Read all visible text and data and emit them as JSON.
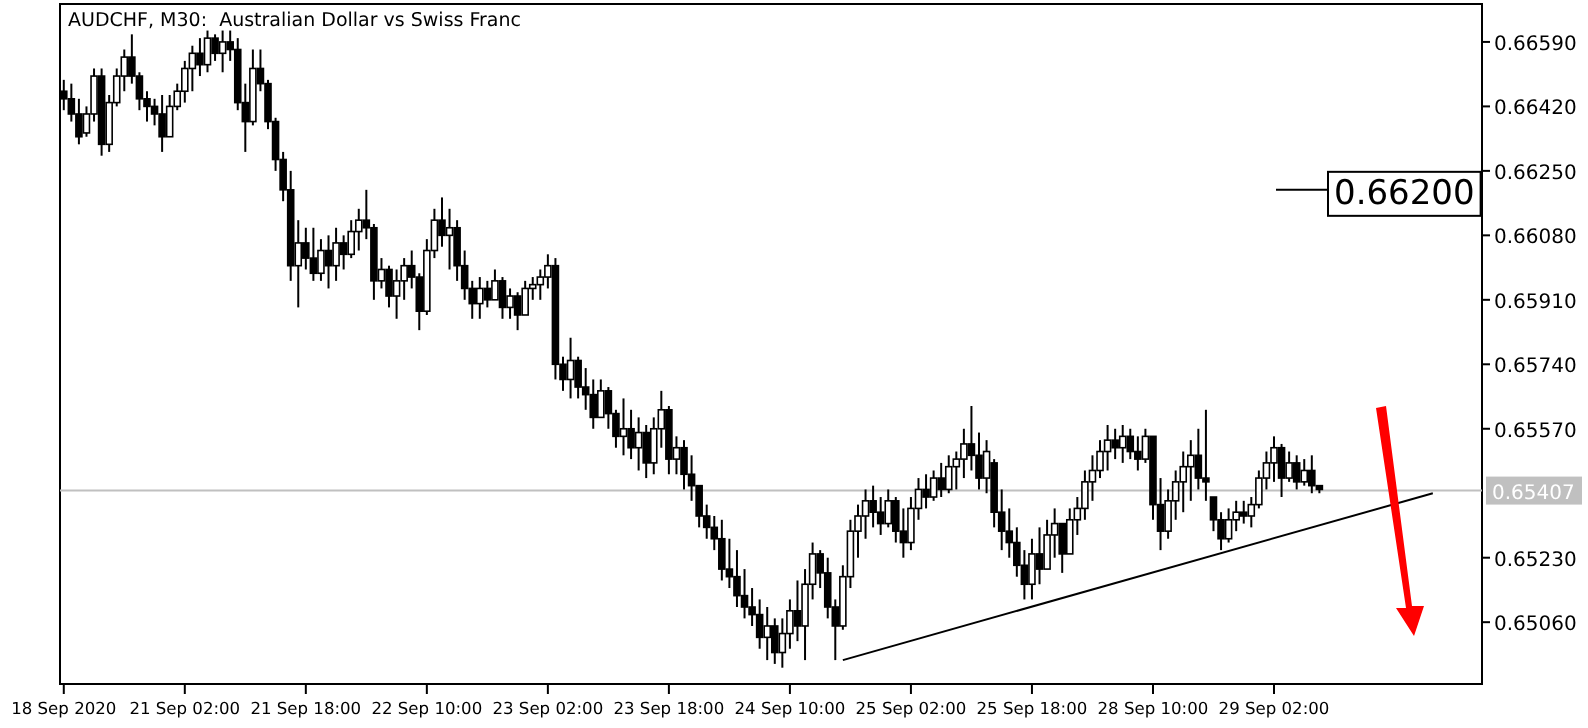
{
  "chart_data": {
    "type": "candlestick",
    "title": "AUDCHF, M30:  Australian Dollar vs Swiss Franc",
    "categories": [
      "18 Sep 2020",
      null,
      null,
      null,
      null,
      null,
      null,
      null,
      null,
      null,
      null,
      null,
      null,
      null,
      null,
      null,
      "21 Sep 02:00",
      null,
      null,
      null,
      null,
      null,
      null,
      null,
      null,
      null,
      null,
      null,
      null,
      null,
      null,
      null,
      "21 Sep 18:00",
      null,
      null,
      null,
      null,
      null,
      null,
      null,
      null,
      null,
      null,
      null,
      null,
      null,
      null,
      null,
      "22 Sep 10:00",
      null,
      null,
      null,
      null,
      null,
      null,
      null,
      null,
      null,
      null,
      null,
      null,
      null,
      null,
      null,
      "23 Sep 02:00",
      null,
      null,
      null,
      null,
      null,
      null,
      null,
      null,
      null,
      null,
      null,
      null,
      null,
      null,
      null,
      "23 Sep 18:00",
      null,
      null,
      null,
      null,
      null,
      null,
      null,
      null,
      null,
      null,
      null,
      null,
      null,
      null,
      null,
      "24 Sep 10:00",
      null,
      null,
      null,
      null,
      null,
      null,
      null,
      null,
      null,
      null,
      null,
      null,
      null,
      null,
      null,
      "25 Sep 02:00",
      null,
      null,
      null,
      null,
      null,
      null,
      null,
      null,
      null,
      null,
      null,
      null,
      null,
      null,
      null,
      "25 Sep 18:00",
      null,
      null,
      null,
      null,
      null,
      null,
      null,
      null,
      null,
      null,
      null,
      null,
      null,
      null,
      null,
      "28 Sep 10:00",
      null,
      null,
      null,
      null,
      null,
      null,
      null,
      null,
      null,
      null,
      null,
      null,
      null,
      null,
      null,
      "29 Sep 02:00",
      null,
      null,
      null,
      null,
      null,
      null,
      null,
      null,
      null,
      null,
      null,
      null,
      null,
      null,
      null,
      null,
      null,
      null,
      null,
      null,
      null,
      null,
      null,
      null,
      null,
      null,
      null
    ],
    "ohlc": [
      [
        0.6646,
        0.6649,
        0.6641,
        0.6644
      ],
      [
        0.6644,
        0.6648,
        0.6638,
        0.664
      ],
      [
        0.664,
        0.6644,
        0.6632,
        0.6634
      ],
      [
        0.6635,
        0.6642,
        0.6634,
        0.664
      ],
      [
        0.664,
        0.6652,
        0.6638,
        0.665
      ],
      [
        0.665,
        0.6652,
        0.6629,
        0.6632
      ],
      [
        0.6632,
        0.6645,
        0.663,
        0.6643
      ],
      [
        0.6643,
        0.6652,
        0.6642,
        0.665
      ],
      [
        0.665,
        0.6657,
        0.6646,
        0.6655
      ],
      [
        0.6655,
        0.6661,
        0.6648,
        0.665
      ],
      [
        0.665,
        0.6651,
        0.6641,
        0.6644
      ],
      [
        0.6644,
        0.6646,
        0.6638,
        0.6642
      ],
      [
        0.6642,
        0.6644,
        0.6637,
        0.664
      ],
      [
        0.664,
        0.6645,
        0.663,
        0.6634
      ],
      [
        0.6634,
        0.6645,
        0.6634,
        0.6642
      ],
      [
        0.6642,
        0.6648,
        0.6641,
        0.6646
      ],
      [
        0.6646,
        0.6654,
        0.6643,
        0.6652
      ],
      [
        0.6652,
        0.6658,
        0.6646,
        0.6656
      ],
      [
        0.6656,
        0.666,
        0.665,
        0.6653
      ],
      [
        0.6653,
        0.6662,
        0.6651,
        0.666
      ],
      [
        0.666,
        0.6661,
        0.6654,
        0.6656
      ],
      [
        0.6656,
        0.6662,
        0.6651,
        0.6659
      ],
      [
        0.6659,
        0.6662,
        0.6654,
        0.6657
      ],
      [
        0.6657,
        0.666,
        0.6641,
        0.6643
      ],
      [
        0.6643,
        0.6648,
        0.663,
        0.6638
      ],
      [
        0.6638,
        0.6657,
        0.6637,
        0.6652
      ],
      [
        0.6652,
        0.6657,
        0.6646,
        0.6648
      ],
      [
        0.6648,
        0.6649,
        0.6636,
        0.6638
      ],
      [
        0.6638,
        0.6639,
        0.6625,
        0.6628
      ],
      [
        0.6628,
        0.663,
        0.6617,
        0.662
      ],
      [
        0.662,
        0.6625,
        0.6596,
        0.66
      ],
      [
        0.66,
        0.6612,
        0.6589,
        0.6606
      ],
      [
        0.6606,
        0.661,
        0.6599,
        0.6602
      ],
      [
        0.6602,
        0.661,
        0.6596,
        0.6598
      ],
      [
        0.6598,
        0.6607,
        0.6596,
        0.6604
      ],
      [
        0.6604,
        0.6608,
        0.6594,
        0.66
      ],
      [
        0.66,
        0.661,
        0.6596,
        0.6606
      ],
      [
        0.6606,
        0.6608,
        0.6599,
        0.6603
      ],
      [
        0.6603,
        0.6612,
        0.6602,
        0.6609
      ],
      [
        0.6609,
        0.6615,
        0.6604,
        0.6612
      ],
      [
        0.6612,
        0.662,
        0.6607,
        0.661
      ],
      [
        0.661,
        0.6611,
        0.6591,
        0.6596
      ],
      [
        0.6596,
        0.6602,
        0.6594,
        0.6599
      ],
      [
        0.6599,
        0.66,
        0.6589,
        0.6592
      ],
      [
        0.6592,
        0.6599,
        0.6586,
        0.6596
      ],
      [
        0.6596,
        0.6602,
        0.6591,
        0.66
      ],
      [
        0.66,
        0.6604,
        0.6594,
        0.6597
      ],
      [
        0.6597,
        0.6598,
        0.6583,
        0.6588
      ],
      [
        0.6588,
        0.6607,
        0.6587,
        0.6604
      ],
      [
        0.6604,
        0.6615,
        0.6602,
        0.6612
      ],
      [
        0.6612,
        0.6618,
        0.6605,
        0.6608
      ],
      [
        0.6608,
        0.6615,
        0.6599,
        0.661
      ],
      [
        0.661,
        0.6612,
        0.6596,
        0.66
      ],
      [
        0.66,
        0.6604,
        0.6591,
        0.6594
      ],
      [
        0.6594,
        0.6596,
        0.6586,
        0.659
      ],
      [
        0.659,
        0.6597,
        0.6586,
        0.6594
      ],
      [
        0.6594,
        0.6596,
        0.6589,
        0.6591
      ],
      [
        0.6591,
        0.6599,
        0.6591,
        0.6596
      ],
      [
        0.6596,
        0.6597,
        0.6586,
        0.6589
      ],
      [
        0.6589,
        0.6594,
        0.6586,
        0.6592
      ],
      [
        0.6592,
        0.6593,
        0.6583,
        0.6587
      ],
      [
        0.6587,
        0.6596,
        0.6587,
        0.6594
      ],
      [
        0.6594,
        0.6597,
        0.6591,
        0.6595
      ],
      [
        0.6595,
        0.6599,
        0.6591,
        0.6597
      ],
      [
        0.6597,
        0.6603,
        0.6594,
        0.66
      ],
      [
        0.66,
        0.6602,
        0.657,
        0.6574
      ],
      [
        0.6574,
        0.6576,
        0.6567,
        0.657
      ],
      [
        0.657,
        0.6581,
        0.6565,
        0.6575
      ],
      [
        0.6575,
        0.6576,
        0.6565,
        0.6568
      ],
      [
        0.6568,
        0.6573,
        0.6562,
        0.6566
      ],
      [
        0.6566,
        0.657,
        0.6557,
        0.656
      ],
      [
        0.656,
        0.657,
        0.656,
        0.6567
      ],
      [
        0.6567,
        0.6568,
        0.6557,
        0.6561
      ],
      [
        0.6561,
        0.6562,
        0.6552,
        0.6555
      ],
      [
        0.6555,
        0.6565,
        0.655,
        0.6557
      ],
      [
        0.6557,
        0.6562,
        0.6549,
        0.6552
      ],
      [
        0.6552,
        0.656,
        0.6546,
        0.6556
      ],
      [
        0.6556,
        0.6558,
        0.6544,
        0.6548
      ],
      [
        0.6548,
        0.656,
        0.6545,
        0.6557
      ],
      [
        0.6557,
        0.6567,
        0.6552,
        0.6562
      ],
      [
        0.6562,
        0.6563,
        0.6545,
        0.6549
      ],
      [
        0.6549,
        0.6555,
        0.6545,
        0.6552
      ],
      [
        0.6552,
        0.6554,
        0.6541,
        0.6545
      ],
      [
        0.6545,
        0.655,
        0.6538,
        0.6542
      ],
      [
        0.6542,
        0.6542,
        0.6531,
        0.6534
      ],
      [
        0.6534,
        0.6537,
        0.6528,
        0.6531
      ],
      [
        0.6531,
        0.6534,
        0.6525,
        0.6528
      ],
      [
        0.6528,
        0.6533,
        0.6517,
        0.652
      ],
      [
        0.652,
        0.6528,
        0.6515,
        0.6518
      ],
      [
        0.6518,
        0.6525,
        0.651,
        0.6513
      ],
      [
        0.6513,
        0.652,
        0.6507,
        0.651
      ],
      [
        0.651,
        0.6515,
        0.6505,
        0.6508
      ],
      [
        0.6508,
        0.6512,
        0.6499,
        0.6502
      ],
      [
        0.6502,
        0.651,
        0.6496,
        0.6505
      ],
      [
        0.6505,
        0.6507,
        0.6495,
        0.6498
      ],
      [
        0.6498,
        0.6507,
        0.6494,
        0.6503
      ],
      [
        0.6503,
        0.6512,
        0.6499,
        0.6509
      ],
      [
        0.6509,
        0.6517,
        0.6501,
        0.6505
      ],
      [
        0.6505,
        0.652,
        0.6496,
        0.6516
      ],
      [
        0.6516,
        0.6527,
        0.6512,
        0.6524
      ],
      [
        0.6524,
        0.6525,
        0.6515,
        0.6519
      ],
      [
        0.6519,
        0.6523,
        0.6507,
        0.651
      ],
      [
        0.651,
        0.6512,
        0.6496,
        0.6505
      ],
      [
        0.6505,
        0.6521,
        0.6504,
        0.6518
      ],
      [
        0.6518,
        0.6533,
        0.6515,
        0.653
      ],
      [
        0.653,
        0.6537,
        0.6523,
        0.6534
      ],
      [
        0.6534,
        0.6541,
        0.6528,
        0.6538
      ],
      [
        0.6538,
        0.6542,
        0.6531,
        0.6535
      ],
      [
        0.6535,
        0.6539,
        0.6529,
        0.6532
      ],
      [
        0.6532,
        0.6541,
        0.6531,
        0.6538
      ],
      [
        0.6538,
        0.6539,
        0.6527,
        0.653
      ],
      [
        0.653,
        0.6536,
        0.6523,
        0.6527
      ],
      [
        0.6527,
        0.6539,
        0.6525,
        0.6536
      ],
      [
        0.6536,
        0.6544,
        0.6533,
        0.6541
      ],
      [
        0.6541,
        0.6545,
        0.6536,
        0.6539
      ],
      [
        0.6539,
        0.6546,
        0.6538,
        0.6544
      ],
      [
        0.6544,
        0.6548,
        0.6539,
        0.6541
      ],
      [
        0.6541,
        0.655,
        0.654,
        0.6547
      ],
      [
        0.6547,
        0.6551,
        0.6541,
        0.6549
      ],
      [
        0.6549,
        0.6557,
        0.6544,
        0.6553
      ],
      [
        0.6553,
        0.6563,
        0.6546,
        0.655
      ],
      [
        0.655,
        0.6556,
        0.6541,
        0.6544
      ],
      [
        0.6544,
        0.6554,
        0.654,
        0.6551
      ],
      [
        0.6548,
        0.6549,
        0.6531,
        0.6535
      ],
      [
        0.6535,
        0.6541,
        0.6525,
        0.653
      ],
      [
        0.653,
        0.6536,
        0.6523,
        0.6527
      ],
      [
        0.6527,
        0.6531,
        0.6518,
        0.6521
      ],
      [
        0.6521,
        0.6525,
        0.6512,
        0.6516
      ],
      [
        0.6516,
        0.6528,
        0.6512,
        0.6524
      ],
      [
        0.6524,
        0.6531,
        0.6516,
        0.652
      ],
      [
        0.652,
        0.6533,
        0.652,
        0.6529
      ],
      [
        0.6529,
        0.6536,
        0.6523,
        0.6532
      ],
      [
        0.6532,
        0.6532,
        0.6519,
        0.6524
      ],
      [
        0.6524,
        0.6536,
        0.6524,
        0.6533
      ],
      [
        0.6533,
        0.6539,
        0.6529,
        0.6536
      ],
      [
        0.6536,
        0.6546,
        0.6533,
        0.6543
      ],
      [
        0.6543,
        0.655,
        0.6538,
        0.6546
      ],
      [
        0.6546,
        0.6554,
        0.6544,
        0.6551
      ],
      [
        0.6551,
        0.6558,
        0.6546,
        0.6554
      ],
      [
        0.6554,
        0.6557,
        0.6549,
        0.6552
      ],
      [
        0.6552,
        0.6558,
        0.6548,
        0.6555
      ],
      [
        0.6555,
        0.6557,
        0.6549,
        0.6551
      ],
      [
        0.6551,
        0.6555,
        0.6546,
        0.6549
      ],
      [
        0.6549,
        0.6557,
        0.6548,
        0.6555
      ],
      [
        0.6555,
        0.6555,
        0.6533,
        0.6537
      ],
      [
        0.6537,
        0.6544,
        0.6525,
        0.653
      ],
      [
        0.653,
        0.6541,
        0.6528,
        0.6538
      ],
      [
        0.6538,
        0.6546,
        0.6533,
        0.6543
      ],
      [
        0.6543,
        0.6551,
        0.6535,
        0.6547
      ],
      [
        0.6547,
        0.6554,
        0.6538,
        0.655
      ],
      [
        0.655,
        0.6557,
        0.6541,
        0.6544
      ],
      [
        0.6544,
        0.6562,
        0.6538,
        0.6543
      ],
      [
        0.6539,
        0.6539,
        0.653,
        0.6533
      ],
      [
        0.6533,
        0.6535,
        0.6525,
        0.6528
      ],
      [
        0.6528,
        0.6536,
        0.6527,
        0.6533
      ],
      [
        0.6533,
        0.6538,
        0.653,
        0.6535
      ],
      [
        0.6535,
        0.6538,
        0.6532,
        0.6534
      ],
      [
        0.6534,
        0.6539,
        0.6531,
        0.6537
      ],
      [
        0.6537,
        0.6546,
        0.6536,
        0.6544
      ],
      [
        0.6544,
        0.6551,
        0.6541,
        0.6548
      ],
      [
        0.6548,
        0.6555,
        0.6543,
        0.6552
      ],
      [
        0.6552,
        0.6553,
        0.6539,
        0.6544
      ],
      [
        0.6544,
        0.6551,
        0.6543,
        0.6548
      ],
      [
        0.6548,
        0.655,
        0.6541,
        0.6543
      ],
      [
        0.6543,
        0.6549,
        0.6542,
        0.6546
      ],
      [
        0.6546,
        0.655,
        0.654,
        0.6542
      ],
      [
        0.6542,
        0.6542,
        0.654,
        0.6541
      ],
      null,
      null,
      null,
      null,
      null,
      null,
      null,
      null,
      null,
      null,
      null,
      null,
      null,
      null,
      null,
      null,
      null,
      null,
      null,
      null,
      null
    ],
    "series": [
      {
        "type": "line",
        "color": "#000000",
        "values": [
          null,
          null,
          null,
          null,
          null,
          null,
          null,
          null,
          null,
          null,
          null,
          null,
          null,
          null,
          null,
          null,
          null,
          null,
          null,
          null,
          null,
          null,
          null,
          null,
          null,
          null,
          null,
          null,
          null,
          null,
          null,
          null,
          null,
          null,
          null,
          null,
          null,
          null,
          null,
          null,
          null,
          null,
          null,
          null,
          null,
          null,
          null,
          null,
          null,
          null,
          null,
          null,
          null,
          null,
          null,
          null,
          null,
          null,
          null,
          null,
          null,
          null,
          null,
          null,
          null,
          null,
          null,
          null,
          null,
          null,
          null,
          null,
          null,
          null,
          null,
          null,
          null,
          null,
          null,
          null,
          null,
          null,
          null,
          null,
          null,
          null,
          null,
          null,
          null,
          null,
          null,
          null,
          null,
          null,
          null,
          null,
          null,
          null,
          null,
          null,
          null,
          null,
          null,
          0.6496,
          null,
          null,
          null,
          null,
          null,
          null,
          null,
          null,
          null,
          null,
          null,
          null,
          null,
          null,
          null,
          null,
          null,
          null,
          null,
          null,
          null,
          null,
          null,
          null,
          null,
          null,
          null,
          null,
          null,
          null,
          null,
          null,
          null,
          null,
          null,
          null,
          null,
          null,
          null,
          null,
          null,
          null,
          null,
          null,
          null,
          null,
          null,
          null,
          null,
          null,
          null,
          null,
          null,
          null,
          null,
          null,
          null,
          null,
          null,
          null,
          null,
          null,
          null,
          null,
          null,
          null,
          null,
          null,
          null,
          null,
          null,
          null,
          null,
          null,
          null,
          null,
          null,
          0.654,
          null,
          null,
          null,
          null,
          null,
          null
        ]
      }
    ],
    "ylim": [
      0.64897,
      0.6669
    ],
    "yticks": [
      {
        "value": 0.6659,
        "label": "0.66590"
      },
      {
        "value": 0.6642,
        "label": "0.66420"
      },
      {
        "value": 0.6625,
        "label": "0.66250"
      },
      {
        "value": 0.6608,
        "label": "0.66080"
      },
      {
        "value": 0.6591,
        "label": "0.65910"
      },
      {
        "value": 0.6574,
        "label": "0.65740"
      },
      {
        "value": 0.6557,
        "label": "0.65570"
      },
      {
        "value": 0.6523,
        "label": "0.65230"
      },
      {
        "value": 0.6506,
        "label": "0.65060"
      }
    ],
    "ref_lines": [
      {
        "axis": "y",
        "value": 0.65407,
        "label": "0.65407",
        "color": "#c0c0c0"
      },
      {
        "axis": "y",
        "value": 0.662,
        "label": "0.66200",
        "color": "#000000"
      }
    ]
  }
}
